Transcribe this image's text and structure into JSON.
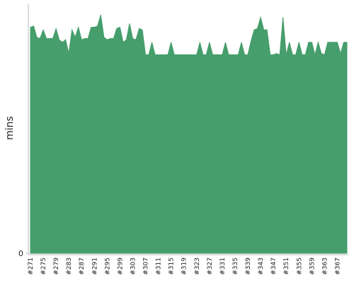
{
  "chart_data": {
    "type": "area",
    "y_label": "mins",
    "color": "#469e6c",
    "categories": [
      "#271",
      null,
      null,
      null,
      "#275",
      null,
      null,
      null,
      "#279",
      null,
      null,
      null,
      "#283",
      null,
      null,
      null,
      "#287",
      null,
      null,
      null,
      "#291",
      null,
      null,
      null,
      "#295",
      null,
      null,
      null,
      "#299",
      null,
      null,
      null,
      "#303",
      null,
      null,
      null,
      "#307",
      null,
      null,
      null,
      "#311",
      null,
      null,
      null,
      "#315",
      null,
      null,
      null,
      "#319",
      null,
      null,
      null,
      "#323",
      null,
      null,
      null,
      "#327",
      null,
      null,
      null,
      "#331",
      null,
      null,
      null,
      "#335",
      null,
      null,
      null,
      "#339",
      null,
      null,
      null,
      "#343",
      null,
      null,
      null,
      "#347",
      null,
      null,
      null,
      "#351",
      null,
      null,
      null,
      "#355",
      null,
      null,
      null,
      "#359",
      null,
      null,
      null,
      "#363",
      null,
      null,
      null,
      "#367",
      null,
      null,
      null
    ],
    "values": [
      18.1,
      18.2,
      17.3,
      17.2,
      17.9,
      17.2,
      17.2,
      17.2,
      18.0,
      17.1,
      16.9,
      17.1,
      16.0,
      17.9,
      17.3,
      18.1,
      17.1,
      17.2,
      17.2,
      18.1,
      18.1,
      18.2,
      19.1,
      17.3,
      17.1,
      17.2,
      17.2,
      18.0,
      18.1,
      16.9,
      17.1,
      18.4,
      17.2,
      17.1,
      18.0,
      17.9,
      15.9,
      15.9,
      16.9,
      15.9,
      15.9,
      15.9,
      15.9,
      15.9,
      16.9,
      15.9,
      15.9,
      15.9,
      15.9,
      15.9,
      15.9,
      15.9,
      15.9,
      16.9,
      15.9,
      15.9,
      16.9,
      15.9,
      15.9,
      15.9,
      15.9,
      16.9,
      15.9,
      15.9,
      15.9,
      15.9,
      16.9,
      15.9,
      15.9,
      17.0,
      17.9,
      18.0,
      18.9,
      17.9,
      17.9,
      15.9,
      15.9,
      16.0,
      15.9,
      18.9,
      15.9,
      16.9,
      15.9,
      15.9,
      16.9,
      15.9,
      15.9,
      16.9,
      16.9,
      15.9,
      16.9,
      16.0,
      15.9,
      16.9,
      16.9,
      16.9,
      16.9,
      16.0,
      16.9,
      16.9
    ],
    "ylim": [
      0,
      20
    ],
    "yticks": [
      0
    ]
  }
}
